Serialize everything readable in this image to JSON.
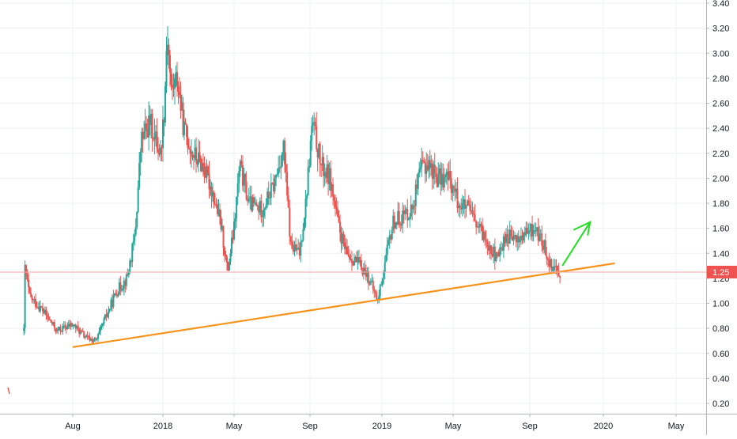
{
  "colors": {
    "up": "#26a69a",
    "down": "#ef5350",
    "trendline": "#f7931a",
    "arrow": "#22dd22",
    "price_line": "#f7a1a1",
    "price_badge": "#ef5350",
    "grid": "#eef0f3",
    "axis": "#b2b5be",
    "text": "#131722"
  },
  "chart_data": {
    "type": "candlestick",
    "title": "",
    "xlabel": "",
    "ylabel": "",
    "grid": true,
    "y_scale": "log",
    "ylim": [
      0.18,
      3.45
    ],
    "y_ticks": [
      "3.40",
      "3.20",
      "3.00",
      "2.80",
      "2.60",
      "2.40",
      "2.20",
      "2.00",
      "1.80",
      "1.60",
      "1.40",
      "1.20",
      "1.00",
      "0.80",
      "0.60",
      "0.40",
      "0.20"
    ],
    "x_ticks": [
      "Aug",
      "2018",
      "May",
      "Sep",
      "2019",
      "May",
      "Sep",
      "2020",
      "May"
    ],
    "x_range": [
      "2017-04-20",
      "2020-07-25"
    ],
    "last_price": "1.25",
    "series_path": [
      [
        "2017-05-10",
        0.78
      ],
      [
        "2017-05-12",
        1.28
      ],
      [
        "2017-05-20",
        1.05
      ],
      [
        "2017-06-10",
        0.95
      ],
      [
        "2017-07-05",
        0.78
      ],
      [
        "2017-08-01",
        0.83
      ],
      [
        "2017-08-25",
        0.72
      ],
      [
        "2017-09-10",
        0.7
      ],
      [
        "2017-09-25",
        0.88
      ],
      [
        "2017-10-15",
        1.1
      ],
      [
        "2017-11-01",
        1.2
      ],
      [
        "2017-11-15",
        1.55
      ],
      [
        "2017-11-25",
        2.3
      ],
      [
        "2017-12-10",
        2.45
      ],
      [
        "2017-12-28",
        2.2
      ],
      [
        "2018-01-04",
        2.6
      ],
      [
        "2018-01-08",
        3.2
      ],
      [
        "2018-01-15",
        2.7
      ],
      [
        "2018-01-25",
        2.8
      ],
      [
        "2018-02-05",
        2.4
      ],
      [
        "2018-02-20",
        2.2
      ],
      [
        "2018-03-10",
        2.1
      ],
      [
        "2018-03-25",
        1.9
      ],
      [
        "2018-04-10",
        1.6
      ],
      [
        "2018-04-20",
        1.25
      ],
      [
        "2018-05-01",
        1.6
      ],
      [
        "2018-05-10",
        2.1
      ],
      [
        "2018-05-25",
        1.8
      ],
      [
        "2018-06-15",
        1.75
      ],
      [
        "2018-07-05",
        1.95
      ],
      [
        "2018-07-20",
        2.25
      ],
      [
        "2018-08-01",
        1.45
      ],
      [
        "2018-08-15",
        1.4
      ],
      [
        "2018-08-25",
        1.8
      ],
      [
        "2018-09-05",
        2.45
      ],
      [
        "2018-09-20",
        2.1
      ],
      [
        "2018-10-05",
        2.0
      ],
      [
        "2018-10-20",
        1.6
      ],
      [
        "2018-11-01",
        1.4
      ],
      [
        "2018-11-15",
        1.35
      ],
      [
        "2018-12-05",
        1.25
      ],
      [
        "2018-12-25",
        1.02
      ],
      [
        "2019-01-05",
        1.3
      ],
      [
        "2019-01-20",
        1.65
      ],
      [
        "2019-02-05",
        1.7
      ],
      [
        "2019-02-20",
        1.75
      ],
      [
        "2019-03-10",
        2.1
      ],
      [
        "2019-03-20",
        2.12
      ],
      [
        "2019-04-05",
        2.0
      ],
      [
        "2019-04-25",
        2.0
      ],
      [
        "2019-05-10",
        1.8
      ],
      [
        "2019-05-25",
        1.75
      ],
      [
        "2019-06-10",
        1.6
      ],
      [
        "2019-06-25",
        1.5
      ],
      [
        "2019-07-10",
        1.35
      ],
      [
        "2019-07-25",
        1.55
      ],
      [
        "2019-08-10",
        1.5
      ],
      [
        "2019-08-25",
        1.55
      ],
      [
        "2019-09-10",
        1.6
      ],
      [
        "2019-09-25",
        1.45
      ],
      [
        "2019-10-05",
        1.32
      ],
      [
        "2019-10-15",
        1.28
      ],
      [
        "2019-10-22",
        1.25
      ]
    ],
    "annotations": [
      {
        "type": "trendline",
        "from": [
          "2017-08-01",
          0.65
        ],
        "to": [
          "2020-01-20",
          1.32
        ]
      },
      {
        "type": "arrow",
        "from": [
          "2019-10-25",
          1.3
        ],
        "to": [
          "2019-12-10",
          1.65
        ]
      },
      {
        "type": "horizontal_line",
        "y": 1.25
      }
    ]
  }
}
